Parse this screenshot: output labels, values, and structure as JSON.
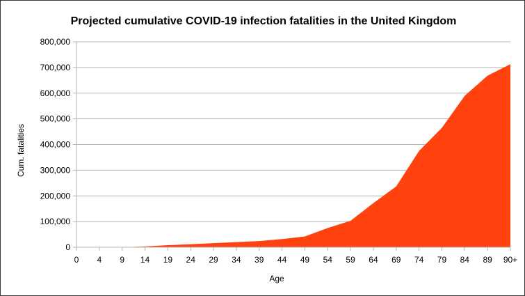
{
  "chart_data": {
    "type": "area",
    "title": "Projected cumulative COVID-19 infection fatalities in the United Kingdom",
    "xlabel": "Age",
    "ylabel": "Cum. fatalities",
    "categories": [
      "0",
      "4",
      "9",
      "14",
      "19",
      "24",
      "29",
      "34",
      "39",
      "44",
      "49",
      "54",
      "59",
      "64",
      "69",
      "74",
      "79",
      "84",
      "89",
      "90+"
    ],
    "series": [
      {
        "values": [
          0,
          0,
          0,
          3000,
          8000,
          12000,
          16000,
          20000,
          24000,
          32000,
          42000,
          75000,
          103000,
          172000,
          237000,
          375000,
          465000,
          590000,
          668000,
          713000
        ],
        "color": "#ff420e"
      }
    ],
    "y_ticks": [
      "0",
      "100,000",
      "200,000",
      "300,000",
      "400,000",
      "500,000",
      "600,000",
      "700,000",
      "800,000"
    ],
    "ylim": [
      0,
      800000
    ],
    "grid": true,
    "legend": "none"
  }
}
